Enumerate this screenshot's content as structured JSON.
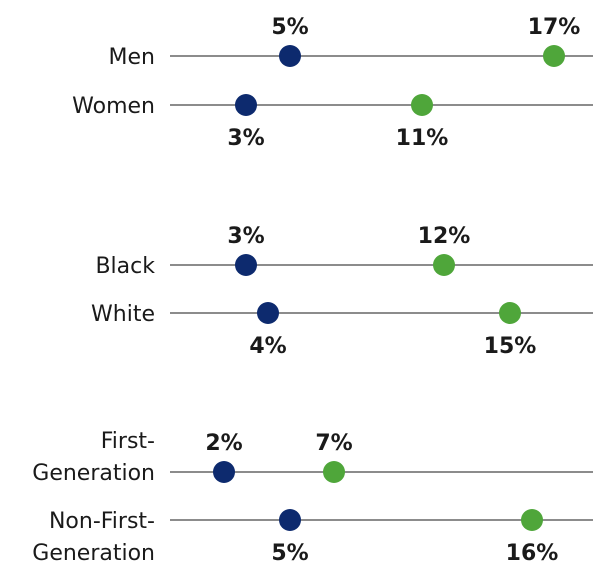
{
  "chart_data": {
    "type": "scatter",
    "xlim": [
      0,
      18
    ],
    "colors": {
      "series_a": "#0d2a6e",
      "series_b": "#4fa63a",
      "track": "#8c8c8c"
    },
    "groups": [
      {
        "rows": [
          {
            "label": [
              "Men"
            ],
            "a": 5,
            "b": 17,
            "a_label": "5%",
            "b_label": "17%",
            "label_pos": "above"
          },
          {
            "label": [
              "Women"
            ],
            "a": 3,
            "b": 11,
            "a_label": "3%",
            "b_label": "11%",
            "label_pos": "below"
          }
        ]
      },
      {
        "rows": [
          {
            "label": [
              "Black"
            ],
            "a": 3,
            "b": 12,
            "a_label": "3%",
            "b_label": "12%",
            "label_pos": "above"
          },
          {
            "label": [
              "White"
            ],
            "a": 4,
            "b": 15,
            "a_label": "4%",
            "b_label": "15%",
            "label_pos": "below"
          }
        ]
      },
      {
        "rows": [
          {
            "label": [
              "First-",
              "Generation"
            ],
            "a": 2,
            "b": 7,
            "a_label": "2%",
            "b_label": "7%",
            "label_pos": "above"
          },
          {
            "label": [
              "Non-First-",
              "Generation"
            ],
            "a": 5,
            "b": 16,
            "a_label": "5%",
            "b_label": "16%",
            "label_pos": "below"
          }
        ]
      }
    ]
  }
}
